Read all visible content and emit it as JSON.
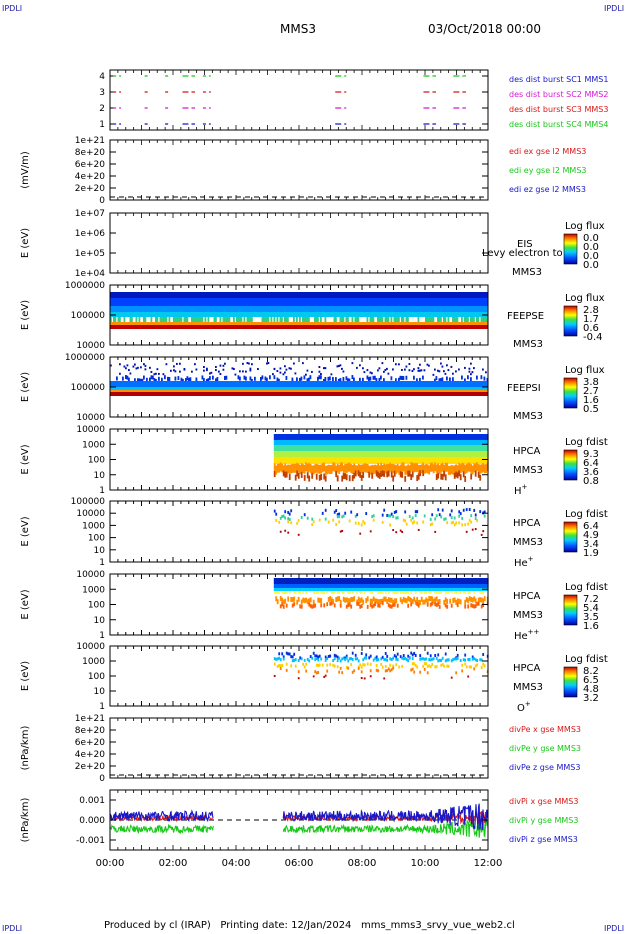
{
  "corner_label": "IPDLI",
  "header": {
    "spacecraft": "MMS3",
    "date": "03/Oct/2018 00:00"
  },
  "footer": {
    "produced_by": "Produced by cl (IRAP)",
    "printing_date": "Printing date: 12/Jan/2024",
    "filename": "mms_mms3_srvy_vue_web2.cl"
  },
  "colors": {
    "mms1": "#1818c8",
    "mms2": "#d818d8",
    "mms3": "#d81818",
    "mms4": "#18c818",
    "x": "#d81818",
    "y": "#18c818",
    "z": "#1818c8"
  },
  "chart_data": [
    {
      "type": "line",
      "name": "des dist burst coverage",
      "yticks": [
        "4",
        "3",
        "2",
        "1"
      ],
      "legend": [
        "des dist burst SC1 MMS1",
        "des dist burst SC2 MMS2",
        "des dist burst SC3 MMS3",
        "des dist burst SC4 MMS4"
      ],
      "series_colors": [
        "mms1",
        "mms2",
        "mms3",
        "mms4"
      ],
      "intervals_hours": [
        [
          0.1,
          0.35
        ],
        [
          1.1,
          1.25
        ],
        [
          1.75,
          1.9
        ],
        [
          2.3,
          2.7
        ],
        [
          2.95,
          3.2
        ],
        [
          7.15,
          7.5
        ],
        [
          9.95,
          10.35
        ],
        [
          10.9,
          11.3
        ]
      ]
    },
    {
      "type": "line",
      "name": "EDI E field",
      "ylabel": "(mV/m)",
      "yticks": [
        "1e+21",
        "8e+20",
        "6e+20",
        "4e+20",
        "2e+20",
        "0"
      ],
      "legend": [
        "edi ex gse l2 MMS3",
        "edi ey gse l2 MMS3",
        "edi ez gse l2 MMS3"
      ],
      "series_colors": [
        "x",
        "y",
        "z"
      ],
      "dashed_zero": true
    },
    {
      "type": "heatmap",
      "name": "EIS",
      "ylabel": "E (eV)",
      "yticks": [
        "1e+07",
        "1e+06",
        "1e+05",
        "1e+04"
      ],
      "label_lines": [
        "EIS",
        "MMS3"
      ],
      "overlay_text": "Levy electron to",
      "cb_title": "Log flux",
      "cb_ticks": [
        "0.0",
        "0.0",
        "0.0",
        "0.0"
      ]
    },
    {
      "type": "heatmap",
      "name": "FEEPSE",
      "ylabel": "E (eV)",
      "yticks": [
        "1000000",
        "100000",
        "10000"
      ],
      "label_lines": [
        "FEEPSE",
        "MMS3"
      ],
      "cb_title": "Log flux",
      "cb_ticks": [
        "2.8",
        "1.7",
        "0.6",
        "-0.4"
      ],
      "coverage_hours": [
        0.0,
        12.0
      ]
    },
    {
      "type": "heatmap",
      "name": "FEEPSI",
      "ylabel": "E (eV)",
      "yticks": [
        "1000000",
        "100000",
        "10000"
      ],
      "label_lines": [
        "FEEPSI",
        "MMS3"
      ],
      "cb_title": "Log flux",
      "cb_ticks": [
        "3.8",
        "2.7",
        "1.6",
        "0.5"
      ],
      "coverage_hours": [
        0.0,
        12.0
      ]
    },
    {
      "type": "heatmap",
      "name": "HPCA H+",
      "ylabel": "E (eV)",
      "yticks": [
        "10000",
        "1000",
        "100",
        "10",
        "1"
      ],
      "label_lines": [
        "HPCA",
        "MMS3"
      ],
      "ion": "H",
      "ion_sup": "+",
      "cb_title": "Log fdist",
      "cb_ticks": [
        "9.3",
        "6.4",
        "3.6",
        "0.8"
      ],
      "coverage_hours": [
        5.2,
        12.0
      ]
    },
    {
      "type": "heatmap",
      "name": "HPCA He+",
      "ylabel": "E (eV)",
      "yticks": [
        "100000",
        "10000",
        "1000",
        "100",
        "10",
        "1"
      ],
      "label_lines": [
        "HPCA",
        "MMS3"
      ],
      "ion": "He",
      "ion_sup": "+",
      "cb_title": "Log fdist",
      "cb_ticks": [
        "6.4",
        "4.9",
        "3.4",
        "1.9"
      ],
      "coverage_hours": [
        5.2,
        12.0
      ]
    },
    {
      "type": "heatmap",
      "name": "HPCA He++",
      "ylabel": "E (eV)",
      "yticks": [
        "10000",
        "1000",
        "100",
        "10",
        "1"
      ],
      "label_lines": [
        "HPCA",
        "MMS3"
      ],
      "ion": "He",
      "ion_sup": "++",
      "cb_title": "Log fdist",
      "cb_ticks": [
        "7.2",
        "5.4",
        "3.5",
        "1.6"
      ],
      "coverage_hours": [
        5.2,
        12.0
      ]
    },
    {
      "type": "heatmap",
      "name": "HPCA O+",
      "ylabel": "E (eV)",
      "yticks": [
        "10000",
        "1000",
        "100",
        "10",
        "1"
      ],
      "label_lines": [
        "HPCA",
        "MMS3"
      ],
      "ion": "O",
      "ion_sup": "+",
      "cb_title": "Log fdist",
      "cb_ticks": [
        "8.2",
        "6.5",
        "4.8",
        "3.2"
      ],
      "coverage_hours": [
        5.2,
        12.0
      ]
    },
    {
      "type": "line",
      "name": "divPe",
      "ylabel": "(nPa/km)",
      "yticks": [
        "1e+21",
        "8e+20",
        "6e+20",
        "4e+20",
        "2e+20",
        "0"
      ],
      "legend": [
        "divPe x gse MMS3",
        "divPe y gse MMS3",
        "divPe z gse MMS3"
      ],
      "series_colors": [
        "x",
        "y",
        "z"
      ],
      "dashed_zero": true
    },
    {
      "type": "line",
      "name": "divPi",
      "ylabel": "(nPa/km)",
      "yticks": [
        "0.001",
        "0.000",
        "-0.001"
      ],
      "ylim": [
        -0.0015,
        0.0015
      ],
      "legend": [
        "divPi x gse MMS3",
        "divPi y gse MMS3",
        "divPi z gse MMS3"
      ],
      "series_colors": [
        "x",
        "y",
        "z"
      ],
      "dashed_zero": true,
      "coverage_hours": [
        [
          0.0,
          3.3
        ],
        [
          5.5,
          12.0
        ]
      ]
    }
  ],
  "xaxis": {
    "ticks": [
      "00:00",
      "02:00",
      "04:00",
      "06:00",
      "08:00",
      "10:00",
      "12:00"
    ],
    "range_hours": [
      0,
      12
    ]
  }
}
